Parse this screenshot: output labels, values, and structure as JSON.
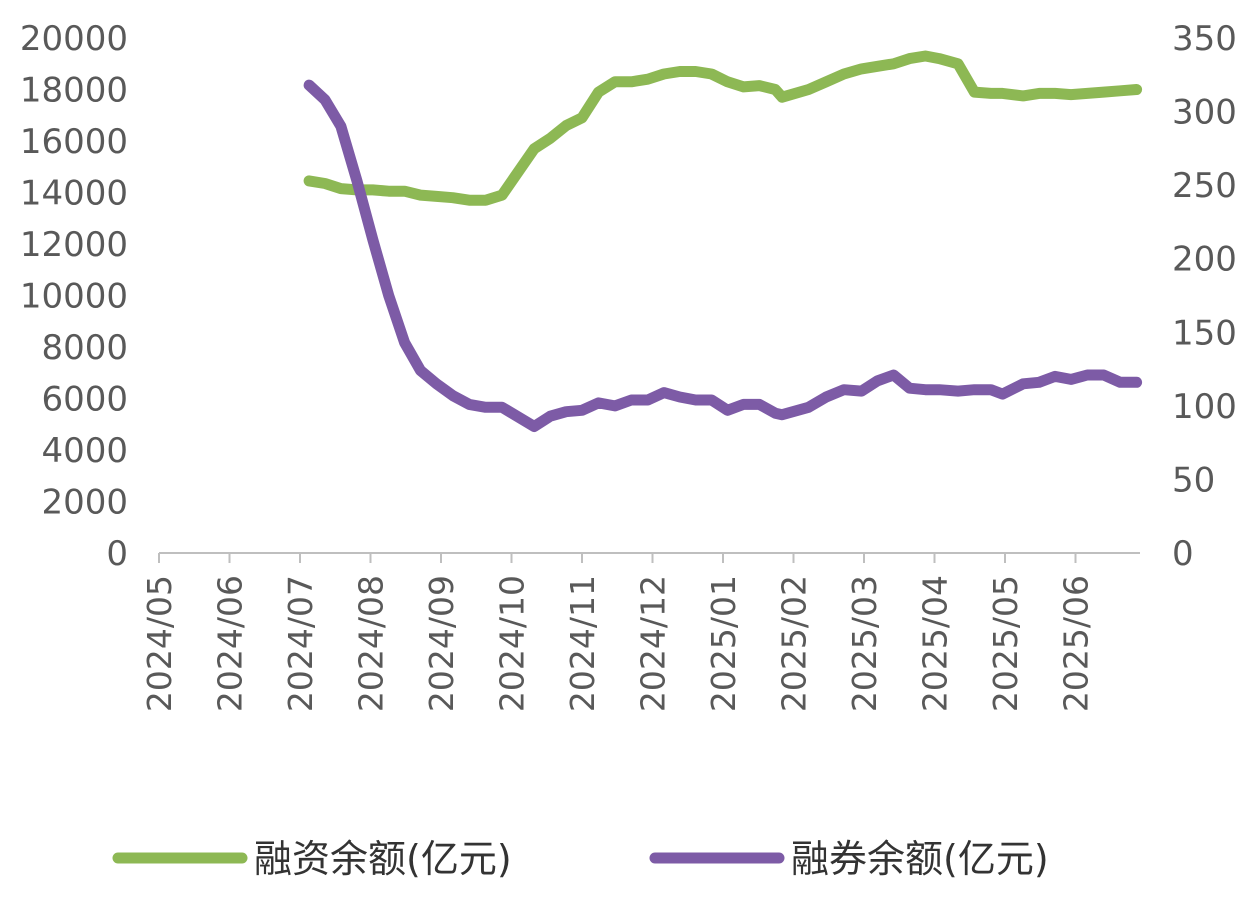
{
  "chart_data": {
    "type": "line",
    "title": "",
    "x_ticks": [
      "2024/05",
      "2024/06",
      "2024/07",
      "2024/08",
      "2024/09",
      "2024/10",
      "2024/11",
      "2024/12",
      "2025/01",
      "2025/02",
      "2025/03",
      "2025/04",
      "2025/05",
      "2025/06"
    ],
    "y_left": {
      "range": [
        0,
        20000
      ],
      "ticks": [
        "20000",
        "18000",
        "16000",
        "14000",
        "12000",
        "10000",
        "8000",
        "6000",
        "4000",
        "2000",
        "0"
      ]
    },
    "y_right": {
      "range": [
        0,
        350
      ],
      "ticks": [
        "350",
        "300",
        "250",
        "200",
        "150",
        "100",
        "50",
        "0"
      ]
    },
    "grid": false,
    "legend_position": "bottom",
    "series": [
      {
        "name": "融资余额(亿元)",
        "axis": "left",
        "color": "#8DB854",
        "x": [
          "2024-07-05",
          "2024-07-12",
          "2024-07-19",
          "2024-07-26",
          "2024-08-02",
          "2024-08-09",
          "2024-08-16",
          "2024-08-23",
          "2024-08-30",
          "2024-09-06",
          "2024-09-13",
          "2024-09-20",
          "2024-09-27",
          "2024-10-11",
          "2024-10-18",
          "2024-10-25",
          "2024-11-01",
          "2024-11-08",
          "2024-11-15",
          "2024-11-22",
          "2024-11-29",
          "2024-12-06",
          "2024-12-13",
          "2024-12-20",
          "2024-12-27",
          "2025-01-03",
          "2025-01-10",
          "2025-01-17",
          "2025-01-24",
          "2025-01-27",
          "2025-02-07",
          "2025-02-14",
          "2025-02-21",
          "2025-02-28",
          "2025-03-07",
          "2025-03-14",
          "2025-03-21",
          "2025-03-28",
          "2025-04-03",
          "2025-04-11",
          "2025-04-18",
          "2025-04-25",
          "2025-04-30",
          "2025-05-09",
          "2025-05-16",
          "2025-05-23",
          "2025-05-30",
          "2025-06-06",
          "2025-06-13",
          "2025-06-20",
          "2025-06-27"
        ],
        "values": [
          14450,
          14350,
          14150,
          14100,
          14100,
          14050,
          14050,
          13900,
          13850,
          13800,
          13700,
          13700,
          13900,
          15700,
          16100,
          16600,
          16900,
          17900,
          18300,
          18300,
          18400,
          18600,
          18700,
          18700,
          18600,
          18300,
          18100,
          18150,
          18000,
          17700,
          18000,
          18300,
          18600,
          18800,
          18900,
          19000,
          19200,
          19300,
          19200,
          19000,
          17900,
          17850,
          17850,
          17750,
          17850,
          17850,
          17800,
          17850,
          17900,
          17950,
          18000
        ]
      },
      {
        "name": "融券余额(亿元)",
        "axis": "right",
        "color": "#7D5BA6",
        "x": [
          "2024-07-05",
          "2024-07-12",
          "2024-07-19",
          "2024-07-26",
          "2024-08-02",
          "2024-08-09",
          "2024-08-16",
          "2024-08-23",
          "2024-08-30",
          "2024-09-06",
          "2024-09-13",
          "2024-09-20",
          "2024-09-27",
          "2024-10-11",
          "2024-10-18",
          "2024-10-25",
          "2024-11-01",
          "2024-11-08",
          "2024-11-15",
          "2024-11-22",
          "2024-11-29",
          "2024-12-06",
          "2024-12-13",
          "2024-12-20",
          "2024-12-27",
          "2025-01-03",
          "2025-01-10",
          "2025-01-17",
          "2025-01-24",
          "2025-01-27",
          "2025-02-07",
          "2025-02-14",
          "2025-02-21",
          "2025-02-28",
          "2025-03-07",
          "2025-03-14",
          "2025-03-21",
          "2025-03-28",
          "2025-04-03",
          "2025-04-11",
          "2025-04-18",
          "2025-04-25",
          "2025-04-30",
          "2025-05-09",
          "2025-05-16",
          "2025-05-23",
          "2025-05-30",
          "2025-06-06",
          "2025-06-13",
          "2025-06-20",
          "2025-06-27"
        ],
        "values": [
          318,
          308,
          290,
          253,
          213,
          175,
          143,
          124,
          115,
          107,
          101,
          99,
          99,
          86,
          93,
          96,
          97,
          102,
          100,
          104,
          104,
          109,
          106,
          104,
          104,
          97,
          101,
          101,
          95,
          94,
          99,
          106,
          111,
          110,
          117,
          121,
          112,
          111,
          111,
          110,
          111,
          111,
          108,
          115,
          116,
          120,
          118,
          121,
          121,
          116,
          116
        ]
      }
    ]
  }
}
